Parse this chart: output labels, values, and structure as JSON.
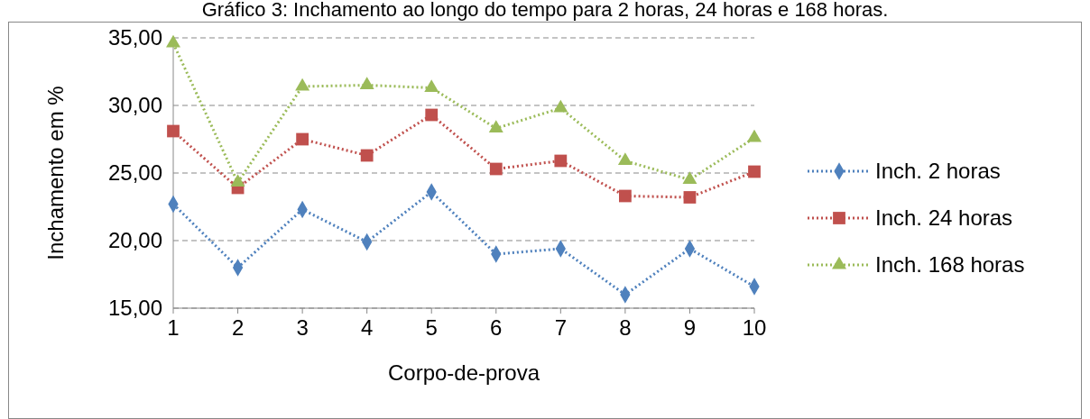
{
  "chart_data": {
    "type": "line",
    "title": "Gráfico 3: Inchamento ao longo do tempo para 2 horas, 24 horas e 168 horas.",
    "xlabel": "Corpo-de-prova",
    "ylabel": "Inchamento em %",
    "categories": [
      "1",
      "2",
      "3",
      "4",
      "5",
      "6",
      "7",
      "8",
      "9",
      "10"
    ],
    "series": [
      {
        "name": "Inch. 2 horas",
        "color": "#4f81bd",
        "marker": "diamond",
        "values": [
          22.7,
          18.0,
          22.3,
          19.9,
          23.6,
          19.0,
          19.4,
          16.0,
          19.4,
          16.6
        ]
      },
      {
        "name": "Inch. 24 horas",
        "color": "#c0504d",
        "marker": "square",
        "values": [
          28.1,
          23.9,
          27.5,
          26.3,
          29.3,
          25.3,
          25.9,
          23.3,
          23.2,
          25.1
        ]
      },
      {
        "name": "Inch. 168 horas",
        "color": "#9bbb59",
        "marker": "triangle",
        "values": [
          34.6,
          24.3,
          31.4,
          31.5,
          31.3,
          28.3,
          29.8,
          25.9,
          24.5,
          27.6
        ]
      }
    ],
    "ylim": [
      15,
      35
    ],
    "yticks": [
      {
        "value": 15,
        "label": "15,00"
      },
      {
        "value": 20,
        "label": "20,00"
      },
      {
        "value": 25,
        "label": "25,00"
      },
      {
        "value": 30,
        "label": "30,00"
      },
      {
        "value": 35,
        "label": "35,00"
      }
    ],
    "grid": "y",
    "legend": "right",
    "line_style": "dotted"
  }
}
